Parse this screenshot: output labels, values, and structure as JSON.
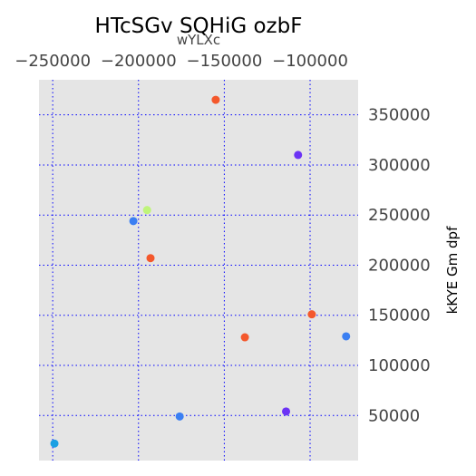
{
  "chart_data": {
    "type": "scatter",
    "title": "HTcSGv  SQHiG ozbF",
    "xlabel": "wYLXc",
    "ylabel": "kKYE Gm dpf",
    "x_axis_position": "top",
    "y_axis_position": "right",
    "xlim": [
      -258000,
      -72000
    ],
    "ylim": [
      5000,
      385000
    ],
    "x_ticks": [
      -250000,
      -200000,
      -150000,
      -100000
    ],
    "x_tick_labels": [
      "−250000",
      "−200000",
      "−150000",
      "−100000"
    ],
    "y_ticks": [
      50000,
      100000,
      150000,
      200000,
      250000,
      300000,
      350000
    ],
    "y_tick_labels": [
      "50000",
      "100000",
      "150000",
      "200000",
      "250000",
      "300000",
      "350000"
    ],
    "grid": true,
    "grid_color": "#0000ff",
    "background_color": "#e5e5e5",
    "points": [
      {
        "x": -155000,
        "y": 365000,
        "color": "#f4582c"
      },
      {
        "x": -107000,
        "y": 310000,
        "color": "#6c33f5"
      },
      {
        "x": -195000,
        "y": 255000,
        "color": "#bff47a"
      },
      {
        "x": -203000,
        "y": 244000,
        "color": "#3b7ff2"
      },
      {
        "x": -193000,
        "y": 207000,
        "color": "#f4582c"
      },
      {
        "x": -99000,
        "y": 151000,
        "color": "#f4582c"
      },
      {
        "x": -138000,
        "y": 128000,
        "color": "#f4582c"
      },
      {
        "x": -79000,
        "y": 129000,
        "color": "#3b7ff2"
      },
      {
        "x": -176000,
        "y": 49000,
        "color": "#3b7ff2"
      },
      {
        "x": -114000,
        "y": 54000,
        "color": "#6c33f5"
      },
      {
        "x": -249000,
        "y": 22000,
        "color": "#1aa0e3"
      }
    ]
  }
}
